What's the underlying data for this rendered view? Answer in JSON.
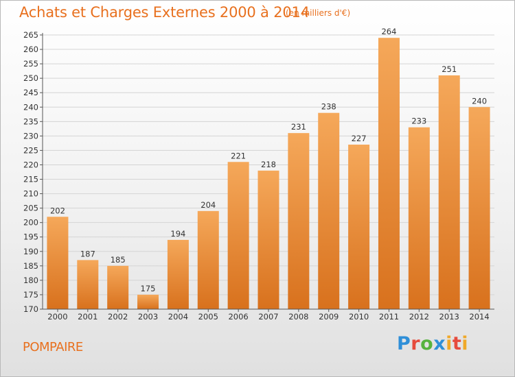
{
  "header": {
    "title": "Achats et Charges Externes 2000 à 2014",
    "subtitle": "(en milliers d'€)"
  },
  "footer": {
    "place": "POMPAIRE",
    "logo": [
      "P",
      "r",
      "o",
      "x",
      "i",
      "t",
      "i"
    ]
  },
  "colors": {
    "bar_top": "#f5a85a",
    "bar_bottom": "#d8711d",
    "accent": "#e8701e"
  },
  "chart_data": {
    "type": "bar",
    "categories": [
      "2000",
      "2001",
      "2002",
      "2003",
      "2004",
      "2005",
      "2006",
      "2007",
      "2008",
      "2009",
      "2010",
      "2011",
      "2012",
      "2013",
      "2014"
    ],
    "values": [
      202,
      187,
      185,
      175,
      194,
      204,
      221,
      218,
      231,
      238,
      227,
      264,
      233,
      251,
      240
    ],
    "ylim": [
      170,
      265
    ],
    "yticks": [
      170,
      175,
      180,
      185,
      190,
      195,
      200,
      205,
      210,
      215,
      220,
      225,
      230,
      235,
      240,
      245,
      250,
      255,
      260,
      265
    ],
    "grid": true
  }
}
